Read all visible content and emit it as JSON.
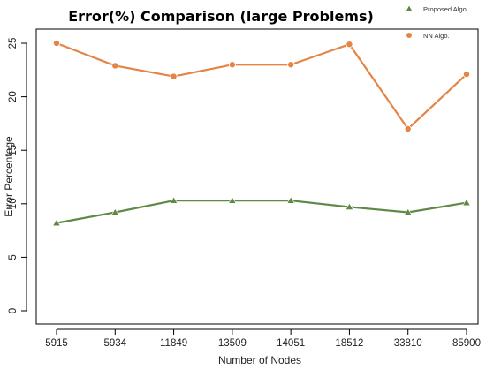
{
  "chart_data": {
    "type": "line",
    "title": "Error(%) Comparison (large Problems)",
    "xlabel": "Number of Nodes",
    "ylabel": "Error Percentage",
    "categories": [
      "5915",
      "5934",
      "11849",
      "13509",
      "14051",
      "18512",
      "33810",
      "85900"
    ],
    "ylim": [
      0,
      25
    ],
    "yticks": [
      0,
      5,
      10,
      15,
      20,
      25
    ],
    "grid": false,
    "legend_position": "top-right",
    "series": [
      {
        "name": "Proposed Algo.",
        "color": "#5f8a45",
        "marker": "triangle",
        "values": [
          8.2,
          9.2,
          10.3,
          10.3,
          10.3,
          9.7,
          9.2,
          10.1
        ]
      },
      {
        "name": "NN Algo.",
        "color": "#e48445",
        "marker": "circle",
        "values": [
          25.0,
          22.9,
          21.9,
          23.0,
          23.0,
          24.9,
          17.0,
          22.1
        ]
      }
    ]
  }
}
